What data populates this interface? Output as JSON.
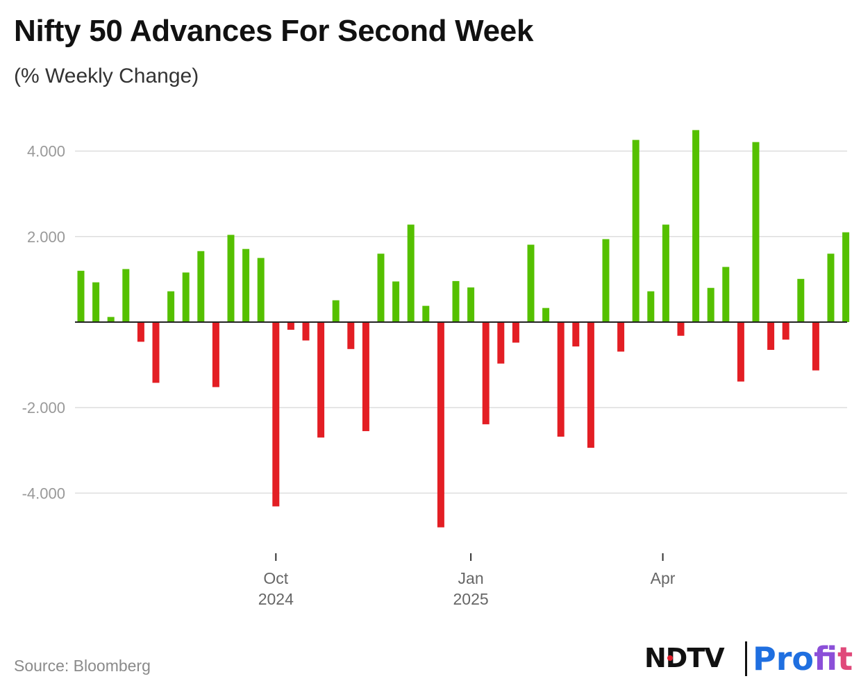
{
  "title": "Nifty 50 Advances For Second Week",
  "subtitle": "(% Weekly Change)",
  "source": "Source: Bloomberg",
  "logo": {
    "left": "NDTV",
    "right": "Profit",
    "right_parts": [
      "Pro",
      "f",
      "it"
    ]
  },
  "colors": {
    "positive": "#55c000",
    "negative": "#e31e24",
    "grid": "#dddddd",
    "axis_text": "#999999",
    "tick_label": "#666666"
  },
  "chart_data": {
    "type": "bar",
    "title": "Nifty 50 Advances For Second Week",
    "ylabel": "% Weekly Change",
    "xlabel": "",
    "ylim": [
      -5.2,
      4.5
    ],
    "y_ticks": [
      4,
      2,
      0,
      -2,
      -4
    ],
    "y_tick_labels": [
      "4.000",
      "2.000",
      "",
      "-2.000",
      "-4.000"
    ],
    "grid": true,
    "x_tick_labels": [
      {
        "label": "Oct",
        "sub": "2024",
        "at_index": 13
      },
      {
        "label": "Jan",
        "sub": "2025",
        "at_index": 26
      },
      {
        "label": "Apr",
        "sub": "",
        "at_index": 38.8
      }
    ],
    "values": [
      1.2,
      0.93,
      0.12,
      1.24,
      -0.46,
      -1.42,
      0.72,
      1.16,
      1.66,
      -1.52,
      2.04,
      1.71,
      1.5,
      -4.31,
      -0.18,
      -0.43,
      -2.7,
      0.51,
      -0.63,
      -2.55,
      1.6,
      0.95,
      2.28,
      0.38,
      -4.8,
      0.96,
      0.81,
      -2.39,
      -0.97,
      -0.48,
      1.81,
      0.33,
      -2.68,
      -0.57,
      -2.94,
      1.94,
      -0.69,
      4.26,
      0.72,
      2.28,
      -0.32,
      4.49,
      0.8,
      1.29,
      -1.39,
      4.21,
      -0.65,
      -0.41,
      1.01,
      -1.13,
      1.6,
      2.1
    ]
  }
}
